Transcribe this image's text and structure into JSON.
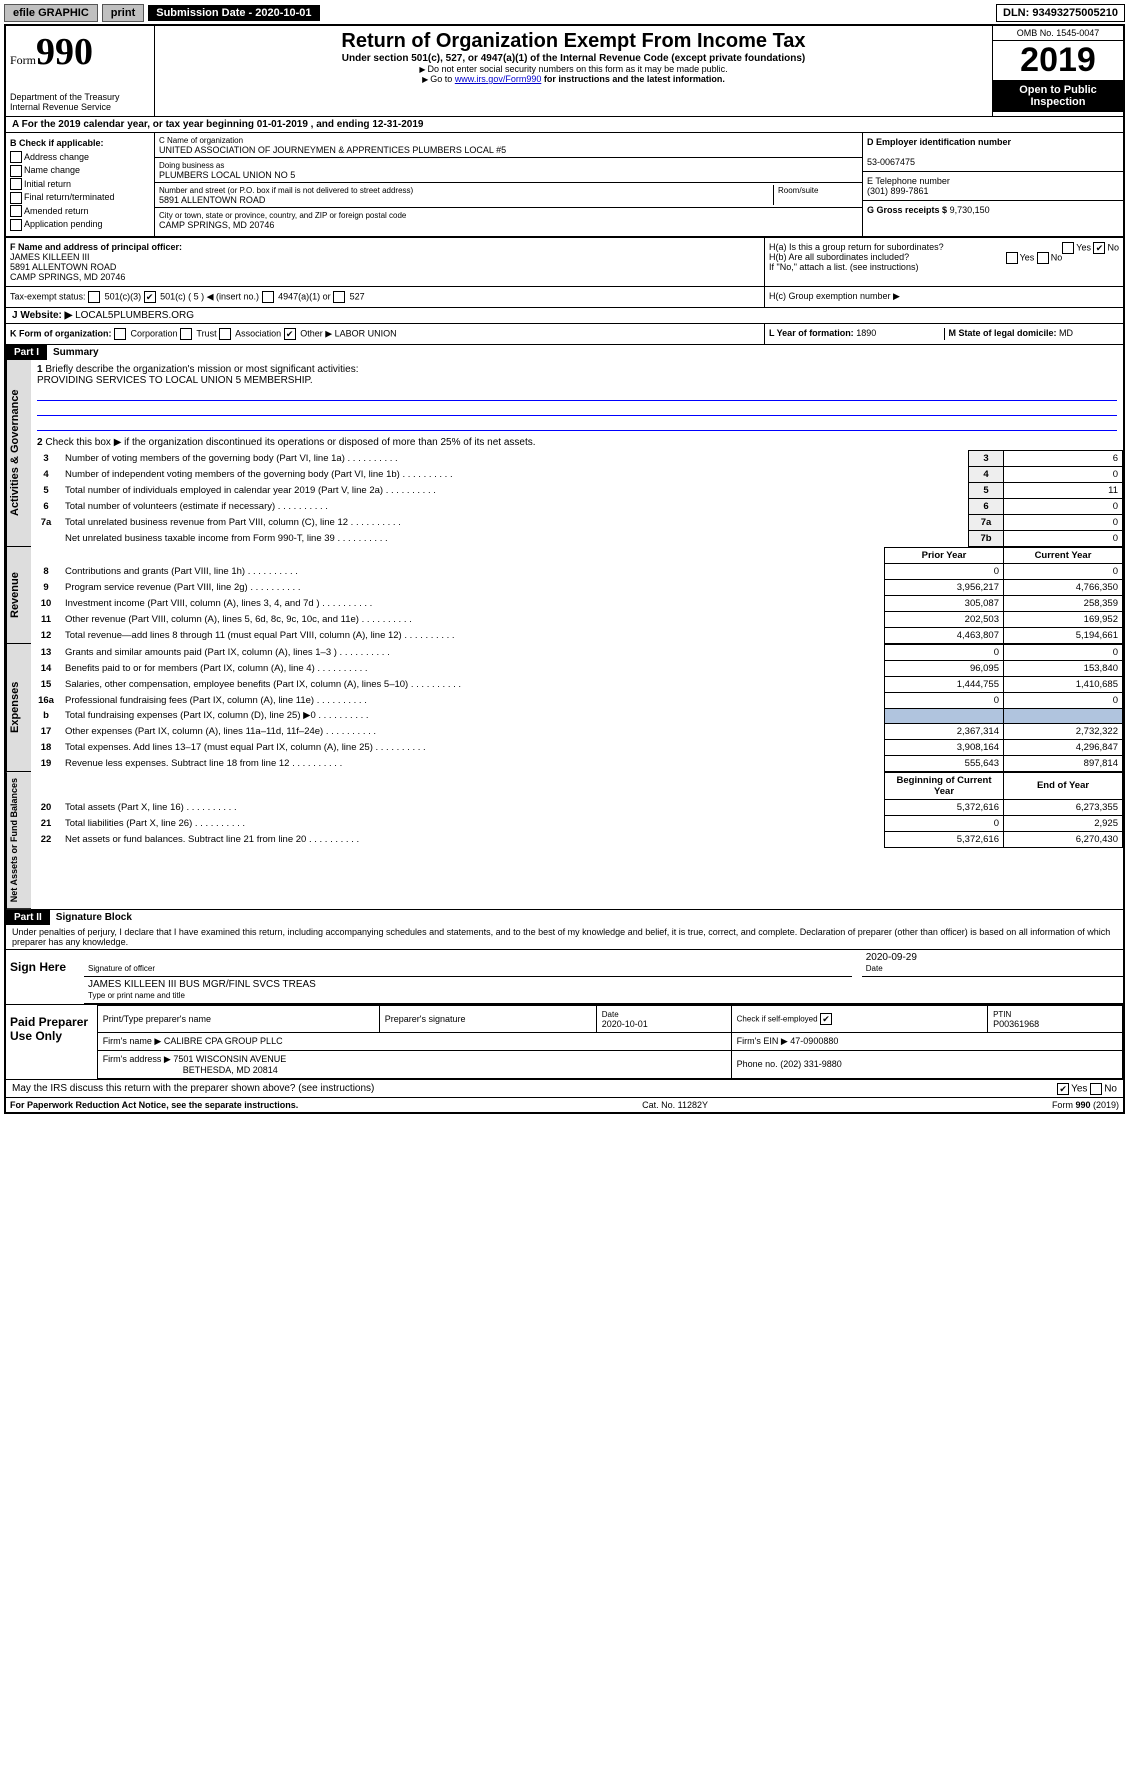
{
  "topbar": {
    "efile": "efile GRAPHIC",
    "print": "print",
    "sub_label": "Submission Date - 2020-10-01",
    "dln": "DLN: 93493275005210"
  },
  "header": {
    "form_small": "Form",
    "form_num": "990",
    "dept": "Department of the Treasury\nInternal Revenue Service",
    "title": "Return of Organization Exempt From Income Tax",
    "sub": "Under section 501(c), 527, or 4947(a)(1) of the Internal Revenue Code (except private foundations)",
    "note1": "Do not enter social security numbers on this form as it may be made public.",
    "note2_pre": "Go to ",
    "note2_link": "www.irs.gov/Form990",
    "note2_post": " for instructions and the latest information.",
    "omb": "OMB No. 1545-0047",
    "year": "2019",
    "open": "Open to Public Inspection"
  },
  "period": "A For the 2019 calendar year, or tax year beginning 01-01-2019   , and ending 12-31-2019",
  "boxB": {
    "title": "B Check if applicable:",
    "items": [
      "Address change",
      "Name change",
      "Initial return",
      "Final return/terminated",
      "Amended return",
      "Application pending"
    ]
  },
  "boxC": {
    "name_lab": "C Name of organization",
    "name": "UNITED ASSOCIATION OF JOURNEYMEN & APPRENTICES PLUMBERS LOCAL #5",
    "dba_lab": "Doing business as",
    "dba": "PLUMBERS LOCAL UNION NO 5",
    "addr_lab": "Number and street (or P.O. box if mail is not delivered to street address)",
    "addr": "5891 ALLENTOWN ROAD",
    "room_lab": "Room/suite",
    "city_lab": "City or town, state or province, country, and ZIP or foreign postal code",
    "city": "CAMP SPRINGS, MD  20746"
  },
  "boxD": {
    "lab": "D Employer identification number",
    "val": "53-0067475"
  },
  "boxE": {
    "lab": "E Telephone number",
    "val": "(301) 899-7861"
  },
  "boxG": {
    "lab": "G Gross receipts $",
    "val": "9,730,150"
  },
  "boxF": {
    "lab": "F  Name and address of principal officer:",
    "name": "JAMES KILLEEN III",
    "addr1": "5891 ALLENTOWN ROAD",
    "addr2": "CAMP SPRINGS, MD  20746"
  },
  "boxH": {
    "a": "H(a)  Is this a group return for subordinates?",
    "b": "H(b)  Are all subordinates included?",
    "b_note": "If \"No,\" attach a list. (see instructions)",
    "c": "H(c)  Group exemption number ▶"
  },
  "taxstatus": {
    "lab": "Tax-exempt status:",
    "c3": "501(c)(3)",
    "c": "501(c) ( 5 ) ◀ (insert no.)",
    "a1": "4947(a)(1) or",
    "s527": "527"
  },
  "boxJ": {
    "lab": "J Website: ▶",
    "val": "LOCAL5PLUMBERS.ORG"
  },
  "boxK": {
    "lab": "K Form of organization:",
    "corp": "Corporation",
    "trust": "Trust",
    "assoc": "Association",
    "other": "Other ▶",
    "other_val": "LABOR UNION"
  },
  "boxL": {
    "lab": "L Year of formation:",
    "val": "1890"
  },
  "boxM": {
    "lab": "M State of legal domicile:",
    "val": "MD"
  },
  "part1": {
    "hdr": "Part I",
    "title": "Summary"
  },
  "summary": {
    "q1": "Briefly describe the organization's mission or most significant activities:",
    "mission": "PROVIDING SERVICES TO LOCAL UNION 5 MEMBERSHIP.",
    "q2": "Check this box ▶        if the organization discontinued its operations or disposed of more than 25% of its net assets.",
    "prior_hdr": "Prior Year",
    "curr_hdr": "Current Year",
    "begin_hdr": "Beginning of Current Year",
    "end_hdr": "End of Year"
  },
  "lines": [
    {
      "n": "3",
      "d": "Number of voting members of the governing body (Part VI, line 1a)",
      "box": "3",
      "v": "6"
    },
    {
      "n": "4",
      "d": "Number of independent voting members of the governing body (Part VI, line 1b)",
      "box": "4",
      "v": "0"
    },
    {
      "n": "5",
      "d": "Total number of individuals employed in calendar year 2019 (Part V, line 2a)",
      "box": "5",
      "v": "11"
    },
    {
      "n": "6",
      "d": "Total number of volunteers (estimate if necessary)",
      "box": "6",
      "v": "0"
    },
    {
      "n": "7a",
      "d": "Total unrelated business revenue from Part VIII, column (C), line 12",
      "box": "7a",
      "v": "0"
    },
    {
      "n": "",
      "d": "Net unrelated business taxable income from Form 990-T, line 39",
      "box": "7b",
      "v": "0"
    }
  ],
  "revexp": [
    {
      "n": "8",
      "d": "Contributions and grants (Part VIII, line 1h)",
      "p": "0",
      "c": "0"
    },
    {
      "n": "9",
      "d": "Program service revenue (Part VIII, line 2g)",
      "p": "3,956,217",
      "c": "4,766,350"
    },
    {
      "n": "10",
      "d": "Investment income (Part VIII, column (A), lines 3, 4, and 7d )",
      "p": "305,087",
      "c": "258,359"
    },
    {
      "n": "11",
      "d": "Other revenue (Part VIII, column (A), lines 5, 6d, 8c, 9c, 10c, and 11e)",
      "p": "202,503",
      "c": "169,952"
    },
    {
      "n": "12",
      "d": "Total revenue—add lines 8 through 11 (must equal Part VIII, column (A), line 12)",
      "p": "4,463,807",
      "c": "5,194,661"
    },
    {
      "n": "13",
      "d": "Grants and similar amounts paid (Part IX, column (A), lines 1–3 )",
      "p": "0",
      "c": "0"
    },
    {
      "n": "14",
      "d": "Benefits paid to or for members (Part IX, column (A), line 4)",
      "p": "96,095",
      "c": "153,840"
    },
    {
      "n": "15",
      "d": "Salaries, other compensation, employee benefits (Part IX, column (A), lines 5–10)",
      "p": "1,444,755",
      "c": "1,410,685"
    },
    {
      "n": "16a",
      "d": "Professional fundraising fees (Part IX, column (A), line 11e)",
      "p": "0",
      "c": "0"
    },
    {
      "n": "b",
      "d": "Total fundraising expenses (Part IX, column (D), line 25) ▶0",
      "p": "",
      "c": "",
      "shade": true
    },
    {
      "n": "17",
      "d": "Other expenses (Part IX, column (A), lines 11a–11d, 11f–24e)",
      "p": "2,367,314",
      "c": "2,732,322"
    },
    {
      "n": "18",
      "d": "Total expenses. Add lines 13–17 (must equal Part IX, column (A), line 25)",
      "p": "3,908,164",
      "c": "4,296,847"
    },
    {
      "n": "19",
      "d": "Revenue less expenses. Subtract line 18 from line 12",
      "p": "555,643",
      "c": "897,814"
    }
  ],
  "netassets": [
    {
      "n": "20",
      "d": "Total assets (Part X, line 16)",
      "p": "5,372,616",
      "c": "6,273,355"
    },
    {
      "n": "21",
      "d": "Total liabilities (Part X, line 26)",
      "p": "0",
      "c": "2,925"
    },
    {
      "n": "22",
      "d": "Net assets or fund balances. Subtract line 21 from line 20",
      "p": "5,372,616",
      "c": "6,270,430"
    }
  ],
  "part2": {
    "hdr": "Part II",
    "title": "Signature Block"
  },
  "sig": {
    "perjury": "Under penalties of perjury, I declare that I have examined this return, including accompanying schedules and statements, and to the best of my knowledge and belief, it is true, correct, and complete. Declaration of preparer (other than officer) is based on all information of which preparer has any knowledge.",
    "sign_here": "Sign Here",
    "sig_officer": "Signature of officer",
    "date": "2020-09-29",
    "date_lab": "Date",
    "name": "JAMES KILLEEN III BUS MGR/FINL SVCS TREAS",
    "name_lab": "Type or print name and title"
  },
  "preparer": {
    "paid": "Paid Preparer Use Only",
    "h1": "Print/Type preparer's name",
    "h2": "Preparer's signature",
    "h3": "Date",
    "h4": "Check       if self-employed",
    "h5": "PTIN",
    "date": "2020-10-01",
    "ptin": "P00361968",
    "firm_lab": "Firm's name   ▶",
    "firm": "CALIBRE CPA GROUP PLLC",
    "ein_lab": "Firm's EIN ▶",
    "ein": "47-0900880",
    "addr_lab": "Firm's address ▶",
    "addr1": "7501 WISCONSIN AVENUE",
    "addr2": "BETHESDA, MD  20814",
    "phone_lab": "Phone no.",
    "phone": "(202) 331-9880"
  },
  "discuss": "May the IRS discuss this return with the preparer shown above? (see instructions)",
  "footer": {
    "pra": "For Paperwork Reduction Act Notice, see the separate instructions.",
    "cat": "Cat. No. 11282Y",
    "form": "Form 990 (2019)"
  },
  "yn": {
    "yes": "Yes",
    "no": "No"
  }
}
